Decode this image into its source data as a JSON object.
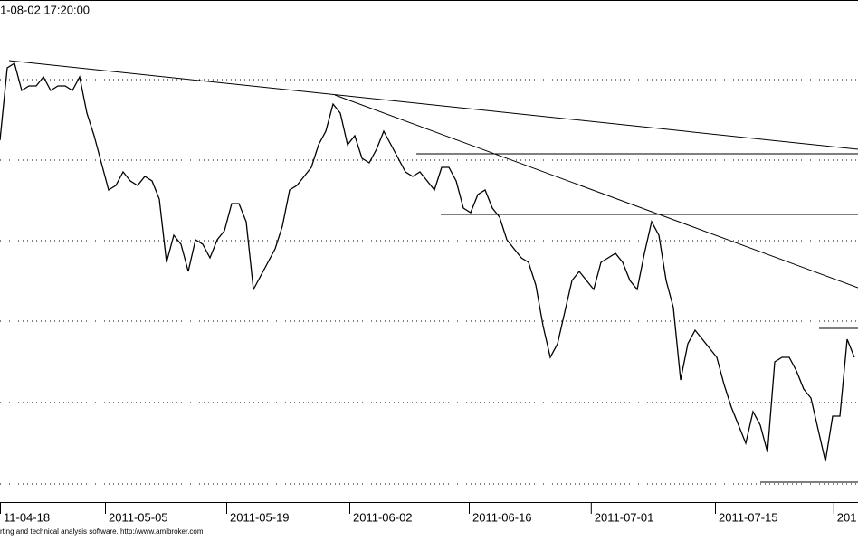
{
  "chart_data": {
    "type": "line",
    "title": "1-08-02 17:20:00",
    "footer": "rting and technical analysis software. http://www.amibroker.com",
    "x": [
      0,
      1,
      2,
      3,
      4,
      5,
      6,
      7,
      8,
      9,
      10,
      11,
      12,
      13,
      14,
      15,
      16,
      17,
      18,
      19,
      20,
      21,
      22,
      23,
      24,
      25,
      26,
      27,
      28,
      29,
      30,
      31,
      32,
      33,
      34,
      35,
      36,
      37,
      38,
      39,
      40,
      41,
      42,
      43,
      44,
      45,
      46,
      47,
      48,
      49,
      50,
      51,
      52,
      53,
      54,
      55,
      56,
      57,
      58,
      59,
      60,
      61,
      62,
      63,
      64,
      65,
      66,
      67,
      68,
      69,
      70,
      71,
      72,
      73,
      74,
      75,
      76,
      77,
      78,
      79,
      80,
      81,
      82,
      83,
      84,
      85,
      86,
      87,
      88,
      89,
      90,
      91,
      92,
      93,
      94,
      95,
      96,
      97,
      98,
      99,
      100,
      101,
      102,
      103,
      104,
      105,
      106,
      107,
      108,
      109,
      110,
      111,
      112,
      113,
      114,
      115,
      116,
      117,
      118
    ],
    "series": [
      {
        "color": "#000000",
        "values": [
          398,
          478,
          483,
          453,
          458,
          458,
          468,
          453,
          458,
          458,
          453,
          468,
          428,
          403,
          373,
          343,
          348,
          363,
          353,
          348,
          358,
          353,
          333,
          263,
          293,
          283,
          253,
          288,
          283,
          268,
          288,
          298,
          328,
          328,
          308,
          233,
          248,
          263,
          278,
          303,
          343,
          348,
          358,
          368,
          393,
          408,
          438,
          428,
          393,
          403,
          378,
          373,
          388,
          408,
          393,
          378,
          363,
          358,
          363,
          353,
          343,
          368,
          368,
          353,
          323,
          318,
          338,
          343,
          323,
          313,
          288,
          278,
          268,
          263,
          238,
          193,
          158,
          173,
          208,
          243,
          253,
          243,
          233,
          263,
          268,
          273,
          263,
          243,
          233,
          273,
          308,
          293,
          243,
          213,
          133,
          173,
          188,
          178,
          168,
          158,
          128,
          103,
          83,
          63,
          98,
          83,
          53,
          153,
          158,
          158,
          143,
          123,
          113,
          78,
          43,
          93,
          93,
          178,
          158
        ]
      }
    ],
    "xlim": [
      0,
      118.5
    ],
    "ylim": [
      0,
      531
    ],
    "xticks": [
      {
        "value": 0,
        "label": "11-04-18"
      },
      {
        "value": 14.5,
        "label": "2011-05-05"
      },
      {
        "value": 31.25,
        "label": "2011-05-19"
      },
      {
        "value": 48.25,
        "label": "2011-06-02"
      },
      {
        "value": 64.75,
        "label": "2011-06-16"
      },
      {
        "value": 81.6,
        "label": "2011-07-01"
      },
      {
        "value": 98.75,
        "label": "2011-07-15"
      },
      {
        "value": 115.1,
        "label": "201"
      }
    ]
  }
}
